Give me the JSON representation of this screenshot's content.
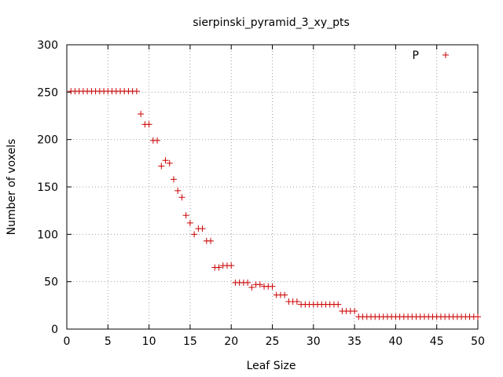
{
  "chart_data": {
    "type": "scatter",
    "title": "sierpinski_pyramid_3_xy_pts",
    "xlabel": "Leaf Size",
    "ylabel": "Number of voxels",
    "xlim": [
      0,
      50
    ],
    "ylim": [
      0,
      300
    ],
    "xticks": [
      0,
      5,
      10,
      15,
      20,
      25,
      30,
      35,
      40,
      45,
      50
    ],
    "yticks": [
      0,
      50,
      100,
      150,
      200,
      250,
      300
    ],
    "grid": true,
    "legend_position": "top-right",
    "marker": "+",
    "series_color": "#cc0000",
    "series": [
      {
        "name": "P",
        "points": [
          [
            0.5,
            251
          ],
          [
            1.0,
            251
          ],
          [
            1.5,
            251
          ],
          [
            2.0,
            251
          ],
          [
            2.5,
            251
          ],
          [
            3.0,
            251
          ],
          [
            3.5,
            251
          ],
          [
            4.0,
            251
          ],
          [
            4.5,
            251
          ],
          [
            5.0,
            251
          ],
          [
            5.5,
            251
          ],
          [
            6.0,
            251
          ],
          [
            6.5,
            251
          ],
          [
            7.0,
            251
          ],
          [
            7.5,
            251
          ],
          [
            8.0,
            251
          ],
          [
            8.5,
            251
          ],
          [
            9.0,
            227
          ],
          [
            9.5,
            216
          ],
          [
            10.0,
            216
          ],
          [
            10.5,
            199
          ],
          [
            11.0,
            199
          ],
          [
            11.5,
            172
          ],
          [
            12.0,
            178
          ],
          [
            12.5,
            175
          ],
          [
            13.0,
            158
          ],
          [
            13.5,
            146
          ],
          [
            14.0,
            139
          ],
          [
            14.5,
            120
          ],
          [
            15.0,
            112
          ],
          [
            15.5,
            100
          ],
          [
            16.0,
            106
          ],
          [
            16.5,
            106
          ],
          [
            17.0,
            93
          ],
          [
            17.5,
            93
          ],
          [
            18.0,
            65
          ],
          [
            18.5,
            65
          ],
          [
            19.0,
            67
          ],
          [
            19.5,
            67
          ],
          [
            20.0,
            67
          ],
          [
            20.5,
            49
          ],
          [
            21.0,
            49
          ],
          [
            21.5,
            49
          ],
          [
            22.0,
            49
          ],
          [
            22.5,
            44
          ],
          [
            23.0,
            47
          ],
          [
            23.5,
            47
          ],
          [
            24.0,
            45
          ],
          [
            24.5,
            45
          ],
          [
            25.0,
            45
          ],
          [
            25.5,
            36
          ],
          [
            26.0,
            36
          ],
          [
            26.5,
            36
          ],
          [
            27.0,
            29
          ],
          [
            27.5,
            29
          ],
          [
            28.0,
            29
          ],
          [
            28.5,
            26
          ],
          [
            29.0,
            26
          ],
          [
            29.5,
            26
          ],
          [
            30.0,
            26
          ],
          [
            30.5,
            26
          ],
          [
            31.0,
            26
          ],
          [
            31.5,
            26
          ],
          [
            32.0,
            26
          ],
          [
            32.5,
            26
          ],
          [
            33.0,
            26
          ],
          [
            33.5,
            19
          ],
          [
            34.0,
            19
          ],
          [
            34.5,
            19
          ],
          [
            35.0,
            19
          ],
          [
            35.5,
            13
          ],
          [
            36.0,
            13
          ],
          [
            36.5,
            13
          ],
          [
            37.0,
            13
          ],
          [
            37.5,
            13
          ],
          [
            38.0,
            13
          ],
          [
            38.5,
            13
          ],
          [
            39.0,
            13
          ],
          [
            39.5,
            13
          ],
          [
            40.0,
            13
          ],
          [
            40.5,
            13
          ],
          [
            41.0,
            13
          ],
          [
            41.5,
            13
          ],
          [
            42.0,
            13
          ],
          [
            42.5,
            13
          ],
          [
            43.0,
            13
          ],
          [
            43.5,
            13
          ],
          [
            44.0,
            13
          ],
          [
            44.5,
            13
          ],
          [
            45.0,
            13
          ],
          [
            45.5,
            13
          ],
          [
            46.0,
            13
          ],
          [
            46.5,
            13
          ],
          [
            47.0,
            13
          ],
          [
            47.5,
            13
          ],
          [
            48.0,
            13
          ],
          [
            48.5,
            13
          ],
          [
            49.0,
            13
          ],
          [
            49.5,
            13
          ],
          [
            50.0,
            13
          ]
        ]
      }
    ]
  }
}
